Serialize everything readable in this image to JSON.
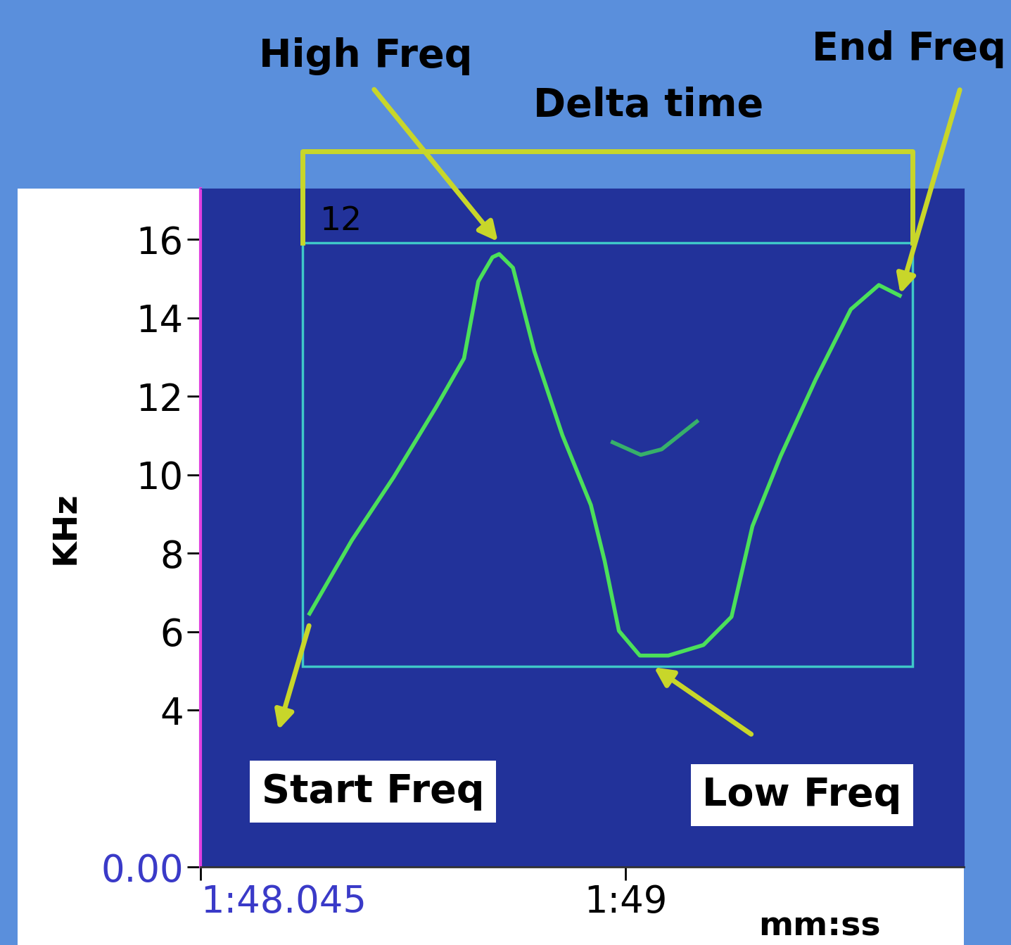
{
  "chart_data": {
    "type": "spectrogram",
    "x_label": "mm:ss",
    "y_label": "KHz",
    "xlim": [
      108.045,
      109.76
    ],
    "ylim": [
      0,
      17.3
    ],
    "xticks": [
      {
        "value": 108.045,
        "label": "1:48.045"
      },
      {
        "value": 109,
        "label": "1:49"
      }
    ],
    "yticks": [
      {
        "value": 0,
        "label": "0.00"
      },
      4,
      6,
      8,
      10,
      12,
      14,
      16
    ],
    "color": "#22329a",
    "series": [
      {
        "color": "#4be05a",
        "x": [
          108.29,
          108.385,
          108.479,
          108.574,
          108.637,
          108.669,
          108.701,
          108.716,
          108.747,
          108.795,
          108.858,
          108.922,
          108.953,
          108.985,
          109.032,
          109.096,
          109.175,
          109.238,
          109.285,
          109.348,
          109.427,
          109.506,
          109.569,
          109.616
        ],
        "values": [
          6.46,
          8.33,
          9.94,
          11.72,
          12.97,
          14.93,
          15.55,
          15.63,
          15.28,
          13.15,
          11.01,
          9.23,
          7.8,
          6.02,
          5.39,
          5.39,
          5.66,
          6.38,
          8.69,
          10.47,
          12.43,
          14.22,
          14.84,
          14.57
        ]
      },
      {
        "color": "#37b06a",
        "x": [
          108.971,
          109.034,
          109.081,
          109.16
        ],
        "values": [
          10.83,
          10.51,
          10.65,
          11.36
        ]
      }
    ],
    "selection": {
      "x": [
        108.274,
        109.644
      ],
      "y": [
        5.12,
        15.91
      ],
      "label": "12",
      "color": "#3fc8c8"
    },
    "annotations": [
      {
        "text": "High Freq",
        "x": 108.716,
        "y": 15.91
      },
      {
        "text": "Delta time"
      },
      {
        "text": "End Freq",
        "x": 109.616,
        "y": 14.57
      },
      {
        "text": "Start Freq",
        "x": 108.29,
        "y": 6.2
      },
      {
        "text": "Low Freq",
        "x": 109.06,
        "y": 5.12
      }
    ]
  }
}
